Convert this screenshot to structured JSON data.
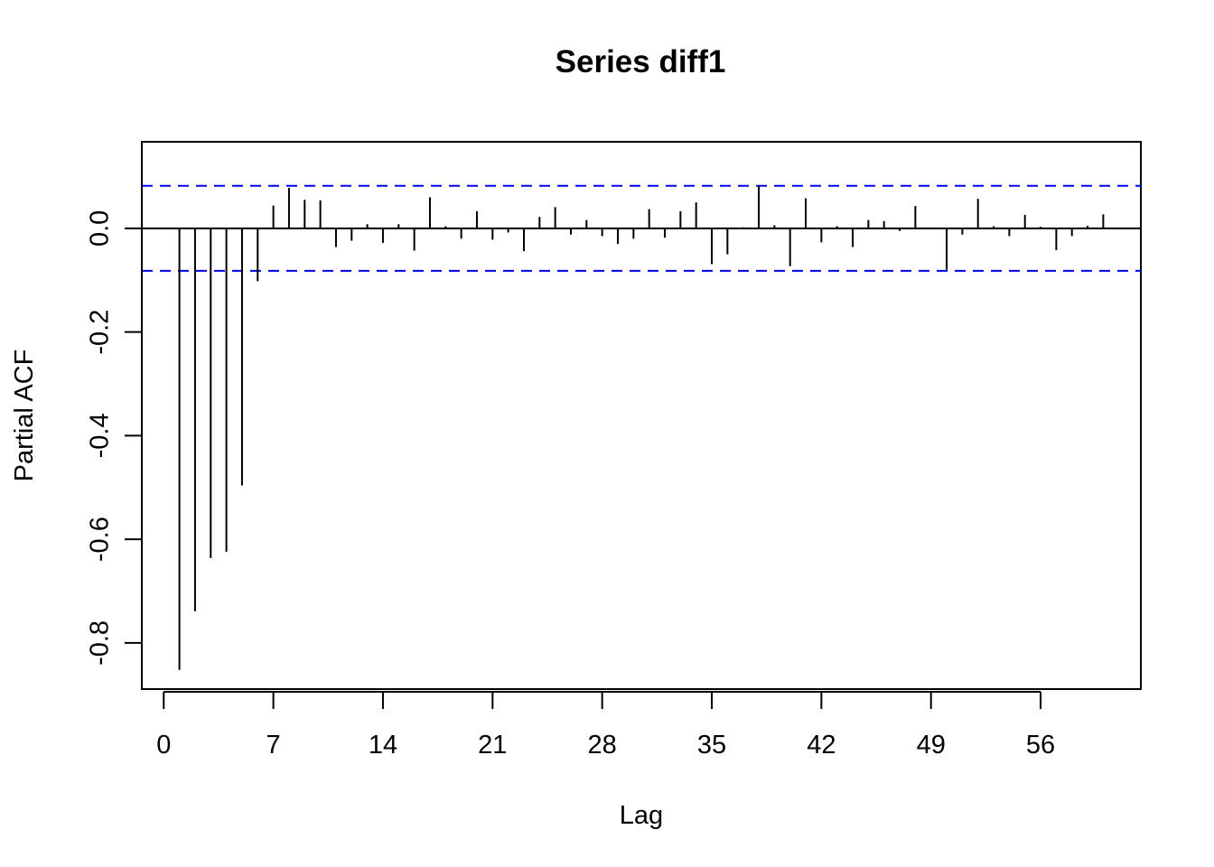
{
  "chart_data": {
    "type": "bar",
    "title": "Series  diff1",
    "xlabel": "Lag",
    "ylabel": "Partial ACF",
    "xlim": [
      -1.4,
      62.4
    ],
    "ylim": [
      -0.889,
      0.167
    ],
    "x_ticks": [
      0,
      7,
      14,
      21,
      28,
      35,
      42,
      49,
      56
    ],
    "y_ticks": [
      -0.8,
      -0.6,
      -0.4,
      -0.2,
      0.0
    ],
    "y_tick_labels": [
      "-0.8",
      "-0.6",
      "-0.4",
      "-0.2",
      "0.0"
    ],
    "grid": false,
    "confidence_band": [
      -0.082,
      0.082
    ],
    "colors": {
      "bars": "#000000",
      "confidence": "#0000ee",
      "zero_line": "#000000"
    },
    "series": [
      {
        "lags": [
          1,
          2,
          3,
          4,
          5,
          6,
          7,
          8,
          9,
          10,
          11,
          12,
          13,
          14,
          15,
          16,
          17,
          18,
          19,
          20,
          21,
          22,
          23,
          24,
          25,
          26,
          27,
          28,
          29,
          30,
          31,
          32,
          33,
          34,
          35,
          36,
          37,
          38,
          39,
          40,
          41,
          42,
          43,
          44,
          45,
          46,
          47,
          48,
          49,
          50,
          51,
          52,
          53,
          54,
          55,
          56,
          57,
          58,
          59,
          60
        ],
        "values": [
          -0.852,
          -0.739,
          -0.636,
          -0.624,
          -0.496,
          -0.102,
          0.044,
          0.078,
          0.055,
          0.054,
          -0.036,
          -0.024,
          0.008,
          -0.028,
          0.008,
          -0.043,
          0.06,
          0.004,
          -0.02,
          0.033,
          -0.022,
          -0.008,
          -0.044,
          0.022,
          0.041,
          -0.012,
          0.016,
          -0.015,
          -0.03,
          -0.02,
          0.037,
          -0.018,
          0.033,
          0.05,
          -0.069,
          -0.05,
          0.002,
          0.083,
          0.006,
          -0.073,
          0.058,
          -0.027,
          0.004,
          -0.036,
          0.016,
          0.014,
          -0.005,
          0.043,
          0.0,
          -0.08,
          -0.012,
          0.057,
          0.004,
          -0.015,
          0.026,
          0.003,
          -0.042,
          -0.015,
          0.005,
          0.027
        ]
      }
    ]
  }
}
